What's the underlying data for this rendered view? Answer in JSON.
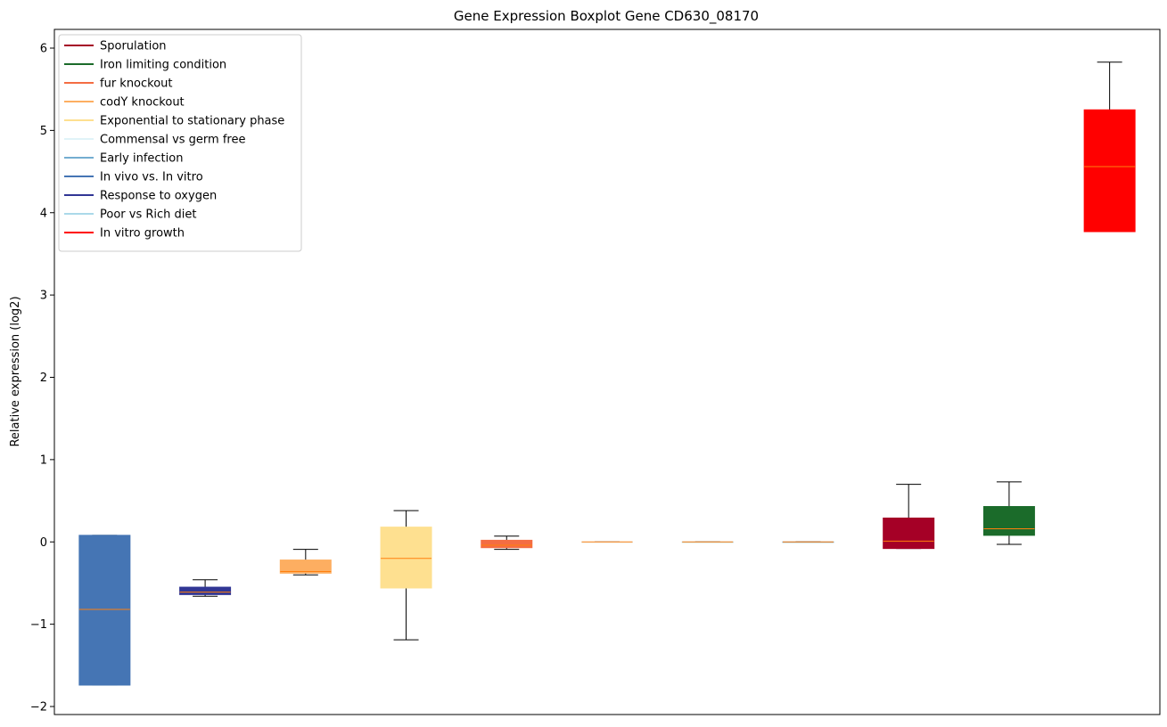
{
  "chart_data": {
    "type": "boxplot",
    "title": "Gene Expression Boxplot Gene CD630_08170",
    "xlabel": "",
    "ylabel": "Relative expression (log2)",
    "ylim": [
      -2.05,
      6.2
    ],
    "yticks": [
      -2,
      -1,
      0,
      1,
      2,
      3,
      4,
      5,
      6
    ],
    "ytick_labels": [
      "−2",
      "−1",
      "0",
      "1",
      "2",
      "3",
      "4",
      "5",
      "6"
    ],
    "grid": false,
    "legend_position": "upper-left",
    "legend": [
      {
        "label": "Sporulation",
        "color": "#a50026"
      },
      {
        "label": "Iron limiting condition",
        "color": "#1b6b2a"
      },
      {
        "label": "fur knockout",
        "color": "#f46d43"
      },
      {
        "label": "codY knockout",
        "color": "#fdae61"
      },
      {
        "label": "Exponential to stationary phase",
        "color": "#fee090"
      },
      {
        "label": "Commensal vs germ free",
        "color": "#e0f3f8"
      },
      {
        "label": "Early infection",
        "color": "#74add1"
      },
      {
        "label": "In vivo vs. In vitro",
        "color": "#4575b4"
      },
      {
        "label": "Response to oxygen",
        "color": "#313695"
      },
      {
        "label": "Poor vs Rich diet",
        "color": "#abd9e9"
      },
      {
        "label": "In vitro growth",
        "color": "#ff0000"
      }
    ],
    "median_color": "#ff7f0e",
    "boxes": [
      {
        "condition": "In vivo vs. In vitro",
        "color": "#4575b4",
        "whislo": -1.74,
        "q1": -1.74,
        "med": -0.82,
        "q3": 0.08,
        "whishi": 0.08
      },
      {
        "condition": "Response to oxygen",
        "color": "#313695",
        "whislo": -0.66,
        "q1": -0.64,
        "med": -0.61,
        "q3": -0.55,
        "whishi": -0.46
      },
      {
        "condition": "codY knockout",
        "color": "#fdae61",
        "whislo": -0.4,
        "q1": -0.38,
        "med": -0.36,
        "q3": -0.22,
        "whishi": -0.09
      },
      {
        "condition": "Exponential to stationary phase",
        "color": "#fee090",
        "whislo": -1.19,
        "q1": -0.56,
        "med": -0.2,
        "q3": 0.18,
        "whishi": 0.38
      },
      {
        "condition": "fur knockout",
        "color": "#f46d43",
        "whislo": -0.09,
        "q1": -0.07,
        "med": -0.04,
        "q3": 0.02,
        "whishi": 0.07
      },
      {
        "condition": "Commensal vs germ free",
        "color": "#e0f3f8",
        "whislo": 0.0,
        "q1": 0.0,
        "med": 0.0,
        "q3": 0.0,
        "whishi": 0.0
      },
      {
        "condition": "Poor vs Rich diet",
        "color": "#abd9e9",
        "whislo": 0.0,
        "q1": 0.0,
        "med": 0.0,
        "q3": 0.0,
        "whishi": 0.0
      },
      {
        "condition": "Early infection",
        "color": "#74add1",
        "whislo": 0.0,
        "q1": 0.0,
        "med": 0.0,
        "q3": 0.0,
        "whishi": 0.0
      },
      {
        "condition": "Sporulation",
        "color": "#a50026",
        "whislo": -0.08,
        "q1": -0.08,
        "med": 0.01,
        "q3": 0.29,
        "whishi": 0.7
      },
      {
        "condition": "Iron limiting condition",
        "color": "#1b6b2a",
        "whislo": -0.03,
        "q1": 0.08,
        "med": 0.16,
        "q3": 0.43,
        "whishi": 0.73
      },
      {
        "condition": "In vitro growth",
        "color": "#ff0000",
        "whislo": 3.77,
        "q1": 3.77,
        "med": 4.56,
        "q3": 5.25,
        "whishi": 5.83
      }
    ]
  }
}
